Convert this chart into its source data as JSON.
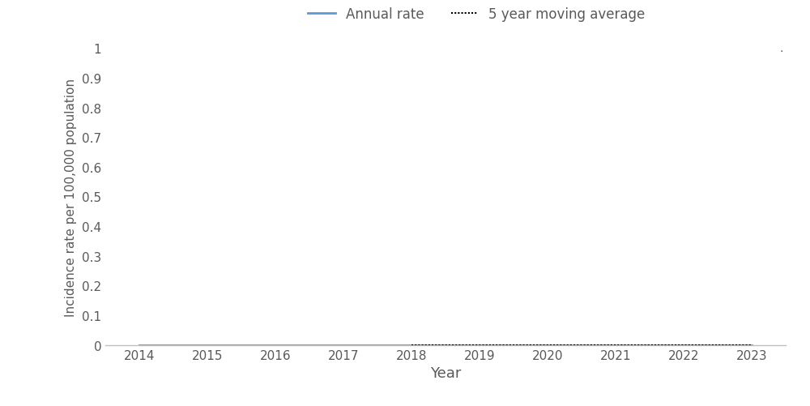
{
  "years": [
    2014,
    2015,
    2016,
    2017,
    2018,
    2019,
    2020,
    2021,
    2022,
    2023
  ],
  "annual_rate": [
    0.0,
    0.0,
    0.0,
    0.0,
    0.0,
    0.0,
    0.0,
    0.0,
    0.0,
    0.0
  ],
  "moving_avg": [
    null,
    null,
    null,
    null,
    0.0,
    0.0,
    0.0,
    0.0,
    0.0,
    0.0
  ],
  "annual_rate_color": "#5B9BD5",
  "moving_avg_color": "#000000",
  "xlabel": "Year",
  "ylabel": "Incidence rate per 100,000 population",
  "ylim": [
    0,
    1.0
  ],
  "ytick_values": [
    0,
    0.1,
    0.2,
    0.3,
    0.4,
    0.5,
    0.6,
    0.7,
    0.8,
    0.9,
    1.0
  ],
  "ytick_labels": [
    "0",
    "0.1",
    "0.2",
    "0.3",
    "0.4",
    "0.5",
    "0.6",
    "0.7",
    "0.8",
    "0.9",
    "1"
  ],
  "xlim": [
    2013.5,
    2023.5
  ],
  "xticks": [
    2014,
    2015,
    2016,
    2017,
    2018,
    2019,
    2020,
    2021,
    2022,
    2023
  ],
  "legend_annual_rate": "Annual rate",
  "legend_moving_avg": "5 year moving average",
  "annual_rate_linewidth": 2.0,
  "moving_avg_linewidth": 1.5,
  "background_color": "#ffffff",
  "axis_color": "#c0c0c0",
  "text_color": "#595959",
  "dot_annotation": "."
}
